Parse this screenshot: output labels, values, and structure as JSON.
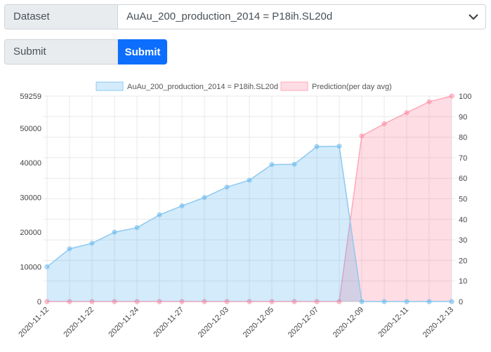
{
  "form": {
    "dataset_label": "Dataset",
    "dataset_value": "AuAu_200_production_2014 = P18ih.SL20d",
    "submit_label": "Submit",
    "submit_button": "Submit"
  },
  "icons": {
    "select_arrow": "chevron-down-icon"
  },
  "colors": {
    "blue_fill": "rgba(54,162,235,0.22)",
    "blue_line": "#8ec9f0",
    "pink_fill": "rgba(255,99,132,0.22)",
    "pink_point": "rgba(255,99,132,0.35)",
    "button": "#0d6efd"
  },
  "chart_data": {
    "type": "area",
    "legend_position": "top",
    "grid": true,
    "x_tick_labels": [
      "2020-11-12",
      "2020-11-22",
      "2020-11-24",
      "2020-11-27",
      "2020-12-03",
      "2020-12-05",
      "2020-12-07",
      "2020-12-09",
      "2020-12-11",
      "2020-12-13"
    ],
    "y_left": {
      "max_label": "59259",
      "ticks": [
        0,
        10000,
        20000,
        30000,
        40000,
        50000
      ],
      "ylim": [
        0,
        59259
      ]
    },
    "y_right": {
      "ticks": [
        0,
        10,
        20,
        30,
        40,
        50,
        60,
        70,
        80,
        90,
        100
      ],
      "ylim": [
        0,
        100
      ]
    },
    "series": [
      {
        "name": "AuAu_200_production_2014 = P18ih.SL20d",
        "axis": "left",
        "values": [
          10000,
          15200,
          16800,
          20000,
          21300,
          25000,
          27600,
          30000,
          33000,
          35000,
          39500,
          39600,
          44700,
          44800,
          0,
          0,
          0,
          0,
          0
        ]
      },
      {
        "name": "Prediction(per day avg)",
        "axis": "right",
        "values": [
          0,
          0,
          0,
          0,
          0,
          0,
          0,
          0,
          0,
          0,
          0,
          0,
          0,
          0,
          80.6,
          86.5,
          91.9,
          97.2,
          100
        ]
      }
    ]
  }
}
